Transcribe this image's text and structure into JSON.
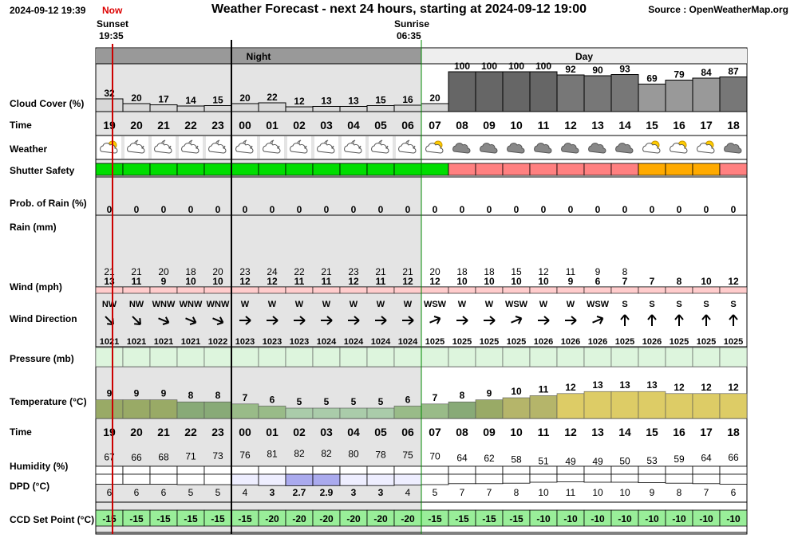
{
  "header": {
    "timestamp": "2024-09-12 19:39",
    "now_label": "Now",
    "title": "Weather Forecast - next 24 hours, starting at 2024-09-12 19:00",
    "source": "Source : OpenWeatherMap.org"
  },
  "sun": {
    "sunset_label": "Sunset",
    "sunset_time": "19:35",
    "sunrise_label": "Sunrise",
    "sunrise_time": "06:35"
  },
  "bands": {
    "night": "Night",
    "day": "Day"
  },
  "rows": {
    "cloud": "Cloud Cover (%)",
    "time": "Time",
    "weather": "Weather",
    "shutter": "Shutter Safety",
    "prob_rain": "Prob. of Rain (%)",
    "rain": "Rain (mm)",
    "wind": "Wind (mph)",
    "wind_dir": "Wind Direction",
    "pressure": "Pressure (mb)",
    "temperature": "Temperature (°C)",
    "time2": "Time",
    "humidity": "Humidity (%)",
    "dpd": "DPD (°C)",
    "ccd": "CCD Set Point (°C)"
  },
  "chart_data": {
    "type": "table",
    "hours": [
      "19",
      "20",
      "21",
      "22",
      "23",
      "00",
      "01",
      "02",
      "03",
      "04",
      "05",
      "06",
      "07",
      "08",
      "09",
      "10",
      "11",
      "12",
      "13",
      "14",
      "15",
      "16",
      "17",
      "18"
    ],
    "cloud_cover": [
      32,
      20,
      17,
      14,
      15,
      20,
      22,
      12,
      13,
      13,
      15,
      16,
      20,
      100,
      100,
      100,
      100,
      92,
      90,
      93,
      69,
      79,
      84,
      87
    ],
    "weather_icon": [
      "partly-cloudy-day-icon",
      "partly-cloudy-night-icon",
      "partly-cloudy-night-icon",
      "partly-cloudy-night-icon",
      "partly-cloudy-night-icon",
      "partly-cloudy-night-icon",
      "partly-cloudy-night-icon",
      "partly-cloudy-night-icon",
      "partly-cloudy-night-icon",
      "partly-cloudy-night-icon",
      "partly-cloudy-night-icon",
      "partly-cloudy-night-icon",
      "partly-cloudy-day-icon",
      "overcast-icon",
      "overcast-icon",
      "overcast-icon",
      "overcast-icon",
      "overcast-icon",
      "overcast-icon",
      "overcast-icon",
      "partly-cloudy-day-icon",
      "partly-cloudy-day-icon",
      "partly-cloudy-day-icon",
      "overcast-icon"
    ],
    "shutter_safety": [
      "safe",
      "safe",
      "safe",
      "safe",
      "safe",
      "safe",
      "safe",
      "safe",
      "safe",
      "safe",
      "safe",
      "safe",
      "safe",
      "unsafe",
      "unsafe",
      "unsafe",
      "unsafe",
      "unsafe",
      "unsafe",
      "unsafe",
      "marginal",
      "marginal",
      "marginal",
      "unsafe"
    ],
    "shutter_colors": {
      "safe": "#00dd00",
      "unsafe": "#ff8080",
      "marginal": "#ffaa00"
    },
    "prob_rain": [
      0,
      0,
      0,
      0,
      0,
      0,
      0,
      0,
      0,
      0,
      0,
      0,
      0,
      0,
      0,
      0,
      0,
      0,
      0,
      0,
      0,
      0,
      0,
      0
    ],
    "rain_mm": [
      0,
      0,
      0,
      0,
      0,
      0,
      0,
      0,
      0,
      0,
      0,
      0,
      0,
      0,
      0,
      0,
      0,
      0,
      0,
      0,
      0,
      0,
      0,
      0
    ],
    "wind_gust": [
      21,
      21,
      20,
      18,
      20,
      23,
      24,
      22,
      21,
      23,
      21,
      21,
      20,
      18,
      18,
      15,
      12,
      11,
      9,
      8,
      null,
      null,
      null,
      null
    ],
    "wind_speed": [
      13,
      11,
      9,
      10,
      10,
      12,
      12,
      11,
      11,
      12,
      11,
      12,
      12,
      10,
      10,
      10,
      10,
      9,
      6,
      7,
      7,
      8,
      10,
      12
    ],
    "wind_dir": [
      "NW",
      "NW",
      "WNW",
      "WNW",
      "WNW",
      "W",
      "W",
      "W",
      "W",
      "W",
      "W",
      "W",
      "WSW",
      "W",
      "W",
      "WSW",
      "W",
      "W",
      "WSW",
      "S",
      "S",
      "S",
      "S",
      "S"
    ],
    "pressure": [
      1021,
      1021,
      1021,
      1021,
      1022,
      1023,
      1023,
      1023,
      1024,
      1024,
      1024,
      1024,
      1025,
      1025,
      1025,
      1025,
      1026,
      1026,
      1026,
      1025,
      1026,
      1025,
      1025,
      1025
    ],
    "temperature": [
      9,
      9,
      9,
      8,
      8,
      7,
      6,
      5,
      5,
      5,
      5,
      6,
      7,
      8,
      9,
      10,
      11,
      12,
      13,
      13,
      13,
      12,
      12,
      12
    ],
    "humidity": [
      67,
      66,
      68,
      71,
      73,
      76,
      81,
      82,
      82,
      80,
      78,
      75,
      70,
      64,
      62,
      58,
      51,
      49,
      49,
      50,
      53,
      59,
      64,
      66
    ],
    "dpd": [
      "6",
      "6",
      "6",
      "5",
      "5",
      "4",
      "3",
      "2.7",
      "2.9",
      "3",
      "3",
      "4",
      "5",
      "7",
      "7",
      "8",
      "10",
      "11",
      "10",
      "10",
      "9",
      "8",
      "7",
      "6"
    ],
    "ccd_set_point": [
      -15,
      -15,
      -15,
      -15,
      -15,
      -15,
      -20,
      -20,
      -20,
      -20,
      -20,
      -20,
      -15,
      -15,
      -15,
      -15,
      -10,
      -10,
      -10,
      -10,
      -10,
      -10,
      -10,
      -10
    ],
    "colors": {
      "cloud_light": "#d8d8d8",
      "cloud_dark": "#666666",
      "night_band": "#999999",
      "day_band": "#eeeeee",
      "night_shade": "#e4e4e4",
      "pressure_fill": "#ddf5dd",
      "temp_cold": "#99bb88",
      "temp_warm": "#ddcc66",
      "wind_bar": "#ffcccc",
      "dpd_low": "#aaaaee",
      "ccd_fill": "#99ee99",
      "now_line": "#cc0000",
      "sunrise_line": "#008800",
      "grid": "#000000"
    }
  }
}
